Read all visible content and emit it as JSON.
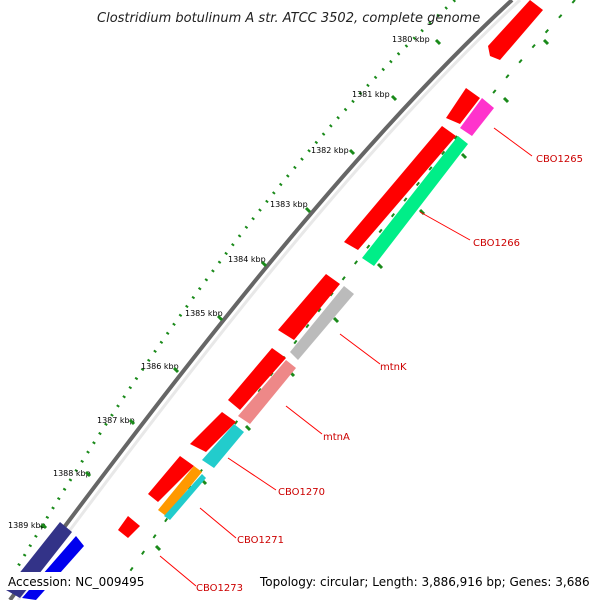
{
  "title": "Clostridium botulinum A str. ATCC 3502, complete genome",
  "accession_text": "Accession: NC_009495",
  "summary_text": "Topology: circular; Length: 3,886,916 bp; Genes: 3,686",
  "colors": {
    "backbone": "#666666",
    "tick_major": "#1a8a1a",
    "label_line": "#ff0000",
    "label_text": "#cc0000"
  },
  "ticks": [
    "1380 kbp",
    "1381 kbp",
    "1382 kbp",
    "1383 kbp",
    "1384 kbp",
    "1385 kbp",
    "1386 kbp",
    "1387 kbp",
    "1388 kbp",
    "1389 kbp"
  ],
  "gene_labels": [
    "CBO1265",
    "CBO1266",
    "mtnK",
    "mtnA",
    "CBO1270",
    "CBO1271",
    "CBO1273"
  ],
  "feature_colors": {
    "cds": "#ff0000",
    "CBO1265": "#ff33cc",
    "CBO1266": "#00ee88",
    "mtnK": "#bbbbbb",
    "mtnA": "#ee8888",
    "CBO1270": "#22cccc",
    "CBO1271_a": "#ff9900",
    "CBO1271_b": "#22cccc",
    "left_a": "#333388",
    "left_b": "#0000ee"
  }
}
